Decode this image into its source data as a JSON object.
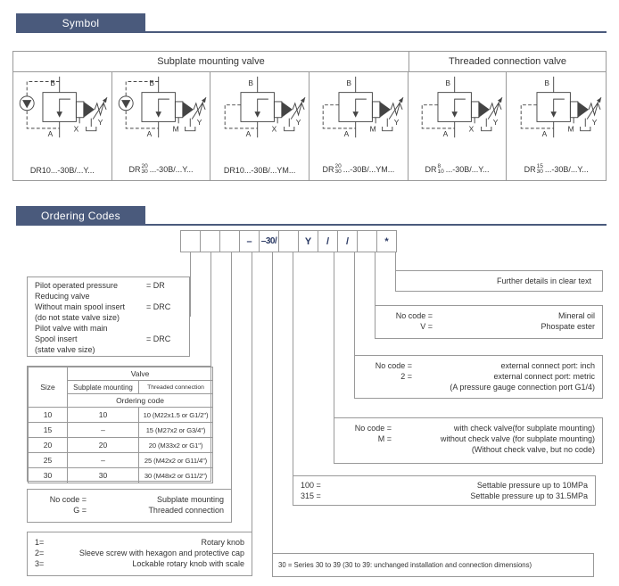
{
  "page": {
    "accent_color": "#4a5a7c",
    "border_color": "#999999",
    "code_text_color": "#2b3a64"
  },
  "sections": {
    "symbol_title": "Symbol",
    "ordering_title": "Ordering Codes"
  },
  "symbol_table": {
    "group_headers": [
      {
        "label": "Subplate mounting valve"
      },
      {
        "label": "Threaded connection valve"
      }
    ],
    "port_top": "B",
    "port_bottom": "A",
    "port_drain": "Y",
    "cells": [
      {
        "caption_prefix": "DR",
        "caption_sup": "",
        "caption_sub": "",
        "caption_rest": "10...-30B/...Y...",
        "check_valve": true,
        "pilot_port": "X"
      },
      {
        "caption_prefix": "DR",
        "caption_sup": "20",
        "caption_sub": "30",
        "caption_rest": "...-30B/...Y...",
        "check_valve": true,
        "pilot_port": "M"
      },
      {
        "caption_prefix": "DR",
        "caption_sup": "",
        "caption_sub": "",
        "caption_rest": "10...-30B/...YM...",
        "check_valve": false,
        "pilot_port": "X"
      },
      {
        "caption_prefix": "DR",
        "caption_sup": "20",
        "caption_sub": "30",
        "caption_rest": "...-30B/...YM...",
        "check_valve": false,
        "pilot_port": "M"
      },
      {
        "caption_prefix": "DR",
        "caption_sup": "8",
        "caption_sub": "10",
        "caption_rest": "...-30B/...Y...",
        "check_valve": false,
        "pilot_port": "X"
      },
      {
        "caption_prefix": "DR",
        "caption_sup": "15",
        "caption_sub": "30",
        "caption_rest": "...-30B/...Y...",
        "check_valve": false,
        "pilot_port": "M"
      }
    ]
  },
  "ordering_code": {
    "cells": [
      "",
      "",
      "",
      "–",
      "–30/",
      "",
      "Y",
      "/",
      "/",
      "",
      "*"
    ]
  },
  "callouts": {
    "type": {
      "rows": [
        [
          "Pilot operated pressure",
          "= DR"
        ],
        [
          "Reducing valve",
          ""
        ],
        [
          "Without main spool insert",
          "= DRC"
        ],
        [
          "(do not state valve size)",
          ""
        ],
        [
          "Pilot valve with main",
          ""
        ],
        [
          "Spool insert",
          "= DRC"
        ],
        [
          "(state valve size)",
          ""
        ]
      ]
    },
    "size_table": {
      "corner": "Size",
      "valve": "Valve",
      "col1": "Subplate mounting",
      "col2": "Threaded connection",
      "ordering": "Ordering code",
      "rows": [
        [
          "10",
          "10",
          "10 (M22x1.5 or G1/2\")"
        ],
        [
          "15",
          "–",
          "15 (M27x2 or G3/4\")"
        ],
        [
          "20",
          "20",
          "20 (M33x2 or G1\")"
        ],
        [
          "25",
          "–",
          "25 (M42x2 or G11/4\")"
        ],
        [
          "30",
          "30",
          "30 (M48x2 or G11/2\")"
        ]
      ]
    },
    "mounting": {
      "rows": [
        [
          "No code =",
          "Subplate mounting"
        ],
        [
          "G =",
          "Threaded connection"
        ]
      ]
    },
    "adjust": {
      "rows": [
        [
          "1=",
          "Rotary knob"
        ],
        [
          "2=",
          "Sleeve screw with hexagon and protective cap"
        ],
        [
          "3=",
          "Lockable rotary knob with scale"
        ]
      ]
    },
    "series": {
      "text": "30 = Series 30 to 39 (30 to 39: unchanged installation and connection dimensions)"
    },
    "pressure": {
      "rows": [
        [
          "100 =",
          "Settable pressure up to 10MPa"
        ],
        [
          "315 =",
          "Settable pressure up to 31.5MPa"
        ]
      ]
    },
    "check": {
      "rows": [
        [
          "No code =",
          "with check valve(for subplate mounting)"
        ],
        [
          "M =",
          "without check valve (for subplate mounting)"
        ],
        [
          "",
          "(Without check valve, but no code)"
        ]
      ]
    },
    "port": {
      "rows": [
        [
          "No code =",
          "external connect port: inch"
        ],
        [
          "2 =",
          "external connect port: metric"
        ],
        [
          "",
          "(A pressure gauge connection port G1/4)"
        ]
      ]
    },
    "oil": {
      "rows": [
        [
          "No code =",
          "Mineral oil"
        ],
        [
          "V =",
          "Phospate ester"
        ]
      ]
    },
    "further": {
      "text": "Further details in clear text"
    }
  }
}
